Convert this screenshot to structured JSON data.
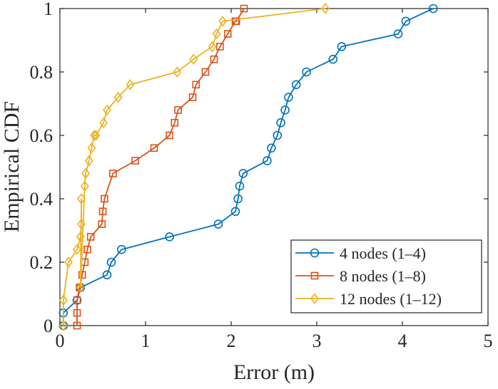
{
  "chart_data": {
    "type": "line",
    "title": "",
    "xlabel": "Error (m)",
    "ylabel": "Empirical CDF",
    "xlim": [
      0,
      5
    ],
    "ylim": [
      0,
      1
    ],
    "xticks": [
      0,
      1,
      2,
      3,
      4,
      5
    ],
    "xtick_labels": [
      "0",
      "1",
      "2",
      "3",
      "4",
      "5"
    ],
    "yticks": [
      0,
      0.2,
      0.4,
      0.6,
      0.8,
      1
    ],
    "ytick_labels": [
      "0",
      "0.2",
      "0.4",
      "0.6",
      "0.8",
      "1"
    ],
    "grid": false,
    "legend_position": "bottom-right",
    "series": [
      {
        "name": "4 nodes (1–4)",
        "color": "#0072BD",
        "marker": "circle",
        "x": [
          0.04,
          0.04,
          0.2,
          0.24,
          0.55,
          0.6,
          0.72,
          1.28,
          1.85,
          2.05,
          2.08,
          2.1,
          2.14,
          2.42,
          2.47,
          2.54,
          2.58,
          2.63,
          2.67,
          2.76,
          2.88,
          3.19,
          3.29,
          3.95,
          4.04,
          4.36
        ],
        "y": [
          0,
          0.04,
          0.08,
          0.12,
          0.16,
          0.2,
          0.24,
          0.28,
          0.32,
          0.36,
          0.4,
          0.44,
          0.48,
          0.52,
          0.56,
          0.6,
          0.64,
          0.68,
          0.72,
          0.76,
          0.8,
          0.84,
          0.88,
          0.92,
          0.96,
          1.0
        ]
      },
      {
        "name": "8 nodes (1–8)",
        "color": "#D95319",
        "marker": "square",
        "x": [
          0.2,
          0.2,
          0.2,
          0.23,
          0.26,
          0.29,
          0.32,
          0.36,
          0.49,
          0.5,
          0.52,
          0.62,
          0.88,
          1.1,
          1.28,
          1.34,
          1.38,
          1.55,
          1.59,
          1.7,
          1.8,
          1.87,
          1.96,
          2.05,
          2.06,
          2.15
        ],
        "y": [
          0,
          0.04,
          0.08,
          0.12,
          0.16,
          0.2,
          0.24,
          0.28,
          0.32,
          0.36,
          0.4,
          0.48,
          0.52,
          0.56,
          0.6,
          0.64,
          0.68,
          0.72,
          0.76,
          0.8,
          0.84,
          0.88,
          0.92,
          0.96,
          0.96,
          1.0
        ]
      },
      {
        "name": "12 nodes (1–12)",
        "color": "#EDB120",
        "marker": "diamond",
        "x": [
          0.04,
          0.04,
          0.1,
          0.2,
          0.24,
          0.25,
          0.25,
          0.24,
          0.29,
          0.3,
          0.34,
          0.37,
          0.4,
          0.42,
          0.51,
          0.55,
          0.68,
          0.82,
          1.37,
          1.56,
          1.78,
          1.83,
          1.9,
          3.1
        ],
        "y": [
          0,
          0.08,
          0.2,
          0.24,
          0.28,
          0.32,
          0.4,
          0.12,
          0.44,
          0.48,
          0.52,
          0.56,
          0.6,
          0.6,
          0.64,
          0.68,
          0.72,
          0.76,
          0.8,
          0.84,
          0.88,
          0.92,
          0.96,
          1.0
        ]
      }
    ]
  }
}
